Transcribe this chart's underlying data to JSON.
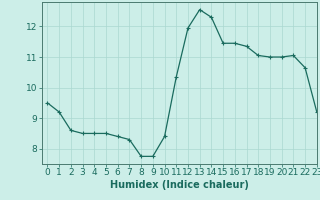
{
  "x": [
    0,
    1,
    2,
    3,
    4,
    5,
    6,
    7,
    8,
    9,
    10,
    11,
    12,
    13,
    14,
    15,
    16,
    17,
    18,
    19,
    20,
    21,
    22,
    23
  ],
  "y": [
    9.5,
    9.2,
    8.6,
    8.5,
    8.5,
    8.5,
    8.4,
    8.3,
    7.75,
    7.75,
    8.4,
    10.35,
    11.95,
    12.55,
    12.3,
    11.45,
    11.45,
    11.35,
    11.05,
    11.0,
    11.0,
    11.05,
    10.65,
    9.2
  ],
  "line_color": "#1a6b5e",
  "marker": "+",
  "marker_size": 3,
  "marker_linewidth": 0.8,
  "bg_color": "#cceee8",
  "grid_color": "#aad8d0",
  "axis_color": "#4a7a70",
  "xlabel": "Humidex (Indice chaleur)",
  "xlim": [
    -0.5,
    23
  ],
  "ylim": [
    7.5,
    12.8
  ],
  "yticks": [
    8,
    9,
    10,
    11,
    12
  ],
  "xticks": [
    0,
    1,
    2,
    3,
    4,
    5,
    6,
    7,
    8,
    9,
    10,
    11,
    12,
    13,
    14,
    15,
    16,
    17,
    18,
    19,
    20,
    21,
    22,
    23
  ],
  "xlabel_fontsize": 7,
  "tick_fontsize": 6.5,
  "linewidth": 0.9
}
